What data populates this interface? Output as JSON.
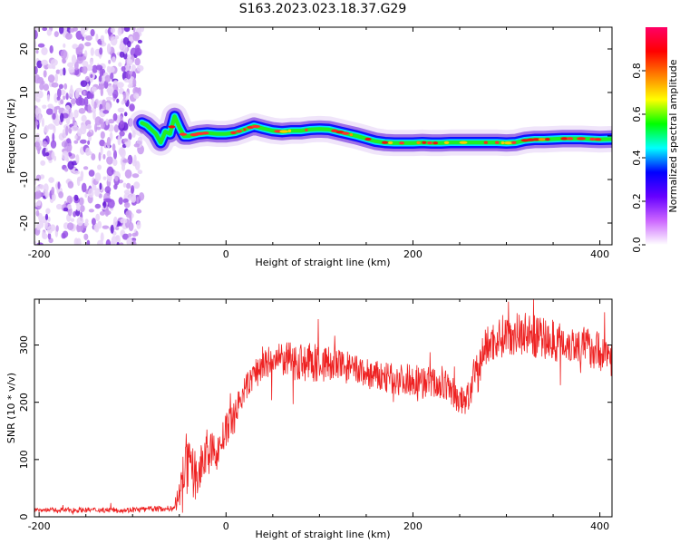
{
  "title": "S163.2023.023.18.37.G29",
  "colors": {
    "snr_line": "#ee2222",
    "colormap": [
      "#ffffff",
      "#cc66ff",
      "#6600ff",
      "#0000ff",
      "#00ffff",
      "#00ff00",
      "#ffff00",
      "#ff8000",
      "#ff0000",
      "#ff0066"
    ]
  },
  "chart_data": [
    {
      "type": "heatmap",
      "title": "S163.2023.023.18.37.G29",
      "xlabel": "Height of straight line (km)",
      "ylabel": "Frequency (Hz)",
      "xlim": [
        -205,
        413
      ],
      "ylim": [
        -25,
        25
      ],
      "x_ticks": [
        -200,
        0,
        200,
        400
      ],
      "x_tick_labels": [
        "-200",
        "0",
        "200",
        "400"
      ],
      "y_ticks": [
        -20,
        -10,
        0,
        10,
        20
      ],
      "y_tick_labels": [
        "-20",
        "-10",
        "0",
        "10",
        "20"
      ],
      "noise_region_x": [
        -205,
        -90
      ],
      "ridge_x": [
        -90,
        -85,
        -80,
        -75,
        -70,
        -65,
        -60,
        -55,
        -50,
        -45,
        -40,
        -30,
        -20,
        -10,
        0,
        10,
        20,
        30,
        40,
        50,
        60,
        70,
        80,
        90,
        100,
        110,
        120,
        130,
        140,
        150,
        160,
        170,
        180,
        190,
        200,
        210,
        220,
        230,
        240,
        250,
        260,
        270,
        280,
        290,
        300,
        310,
        320,
        330,
        340,
        350,
        360,
        370,
        380,
        390,
        400,
        413
      ],
      "ridge_freq": [
        3,
        2.5,
        1.5,
        0.5,
        -1.5,
        1,
        0.5,
        4.5,
        2,
        0,
        0,
        0.5,
        0.7,
        0.5,
        0.5,
        0.8,
        1.5,
        2.3,
        1.7,
        1.2,
        1.0,
        1.2,
        1.2,
        1.5,
        1.6,
        1.5,
        1.0,
        0.5,
        0,
        -0.6,
        -1.2,
        -1.5,
        -1.6,
        -1.6,
        -1.6,
        -1.5,
        -1.6,
        -1.6,
        -1.5,
        -1.5,
        -1.5,
        -1.5,
        -1.5,
        -1.5,
        -1.6,
        -1.5,
        -1.0,
        -0.8,
        -0.8,
        -0.7,
        -0.6,
        -0.6,
        -0.6,
        -0.7,
        -0.8,
        -0.7
      ]
    },
    {
      "type": "line",
      "xlabel": "Height of straight line (km)",
      "ylabel": "SNR (10 * v/v)",
      "xlim": [
        -205,
        413
      ],
      "ylim": [
        0,
        380
      ],
      "x_ticks": [
        -200,
        0,
        200,
        400
      ],
      "x_tick_labels": [
        "-200",
        "0",
        "200",
        "400"
      ],
      "y_ticks": [
        0,
        100,
        200,
        300
      ],
      "y_tick_labels": [
        "0",
        "100",
        "200",
        "300"
      ],
      "x": [
        -205,
        -100,
        -55,
        -48,
        -45,
        -40,
        -30,
        -20,
        -10,
        0,
        10,
        20,
        30,
        40,
        60,
        80,
        100,
        120,
        140,
        160,
        180,
        200,
        220,
        240,
        250,
        260,
        265,
        270,
        275,
        280,
        300,
        320,
        340,
        360,
        380,
        400,
        413
      ],
      "y": [
        12,
        12,
        15,
        50,
        100,
        80,
        70,
        120,
        110,
        150,
        185,
        220,
        250,
        265,
        275,
        270,
        268,
        265,
        255,
        245,
        240,
        240,
        235,
        225,
        200,
        210,
        240,
        250,
        290,
        300,
        320,
        320,
        310,
        305,
        300,
        290,
        280
      ],
      "noise_amplitude": [
        4,
        5,
        5,
        40,
        60,
        50,
        40,
        35,
        30,
        30,
        25,
        25,
        25,
        30,
        30,
        35,
        35,
        30,
        28,
        28,
        28,
        28,
        28,
        28,
        25,
        30,
        35,
        35,
        35,
        35,
        38,
        38,
        38,
        35,
        35,
        35,
        35
      ]
    }
  ],
  "colorbar": {
    "label": "Normalized spectral amplitude",
    "range": [
      0,
      1
    ],
    "ticks": [
      0.0,
      0.2,
      0.4,
      0.6,
      0.8
    ],
    "tick_labels": [
      "0.0",
      "0.2",
      "0.4",
      "0.6",
      "0.8"
    ]
  }
}
